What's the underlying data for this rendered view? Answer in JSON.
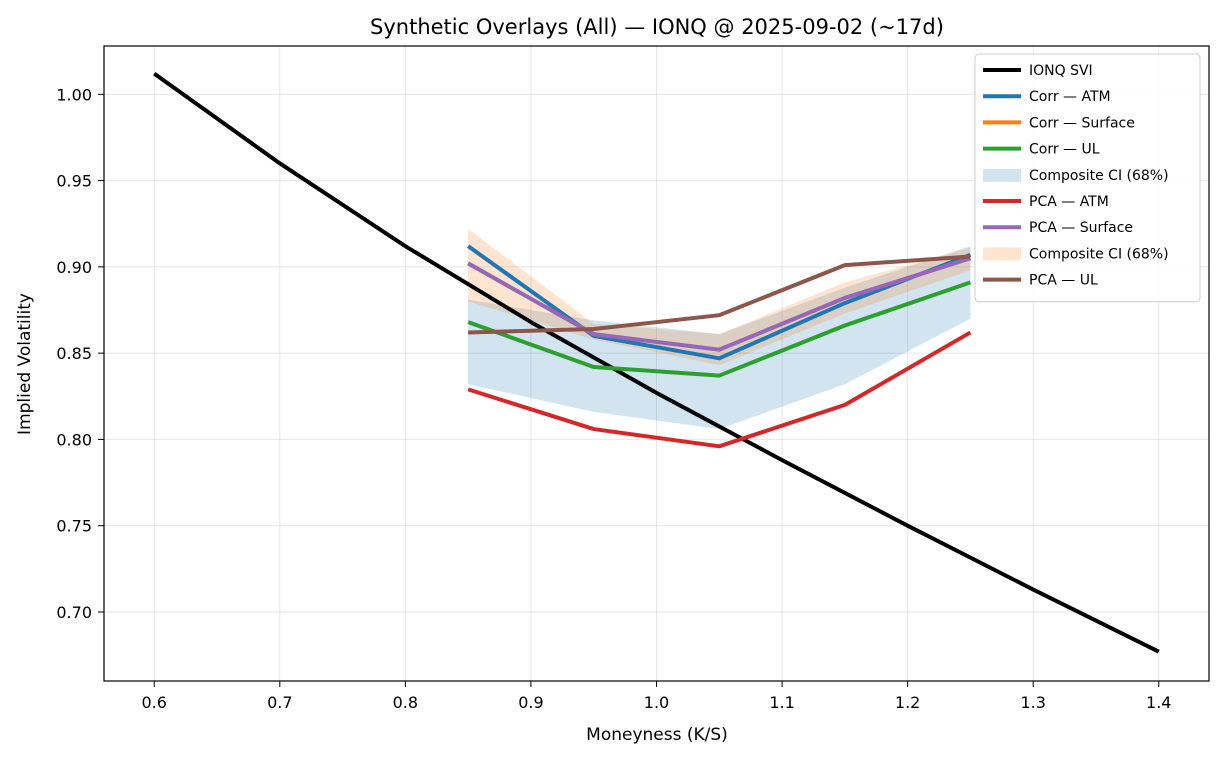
{
  "chart_data": {
    "type": "line",
    "title": "Synthetic Overlays (All) — IONQ @ 2025-09-02 (~17d)",
    "xlabel": "Moneyness (K/S)",
    "ylabel": "Implied Volatility",
    "xlim": [
      0.56,
      1.44
    ],
    "ylim": [
      0.66,
      1.028
    ],
    "xticks": [
      0.6,
      0.7,
      0.8,
      0.9,
      1.0,
      1.1,
      1.2,
      1.3,
      1.4
    ],
    "yticks": [
      0.7,
      0.75,
      0.8,
      0.85,
      0.9,
      0.95,
      1.0
    ],
    "xtick_labels": [
      "0.6",
      "0.7",
      "0.8",
      "0.9",
      "1.0",
      "1.1",
      "1.2",
      "1.3",
      "1.4"
    ],
    "ytick_labels": [
      "0.70",
      "0.75",
      "0.80",
      "0.85",
      "0.90",
      "0.95",
      "1.00"
    ],
    "grid": true,
    "legend_position": "top-right",
    "bands": [
      {
        "name": "Composite CI (68%)",
        "color": "#1f77b4",
        "opacity": 0.2,
        "x": [
          0.85,
          0.95,
          1.05,
          1.15,
          1.25
        ],
        "lower": [
          0.832,
          0.816,
          0.806,
          0.832,
          0.87
        ],
        "upper": [
          0.881,
          0.869,
          0.861,
          0.888,
          0.912
        ]
      },
      {
        "name": "Composite CI (68%)",
        "color": "#ff7f0e",
        "opacity": 0.2,
        "x": [
          0.85,
          0.95,
          1.05,
          1.15,
          1.25
        ],
        "lower": [
          0.88,
          0.858,
          0.843,
          0.873,
          0.898
        ],
        "upper": [
          0.922,
          0.867,
          0.861,
          0.891,
          0.911
        ]
      }
    ],
    "series": [
      {
        "name": "IONQ SVI",
        "color": "#000000",
        "x": [
          0.6,
          0.7,
          0.8,
          0.9,
          1.0,
          1.1,
          1.2,
          1.3,
          1.4
        ],
        "y": [
          1.012,
          0.96,
          0.912,
          0.868,
          0.827,
          0.788,
          0.75,
          0.713,
          0.677
        ]
      },
      {
        "name": "Corr — ATM",
        "color": "#1f77b4",
        "x": [
          0.85,
          0.95,
          1.05,
          1.15,
          1.25
        ],
        "y": [
          0.912,
          0.86,
          0.847,
          0.879,
          0.907
        ]
      },
      {
        "name": "Corr — Surface",
        "color": "#ff7f0e",
        "x": [
          0.85,
          0.95,
          1.05,
          1.15,
          1.25
        ],
        "y": [
          0.902,
          0.861,
          0.852,
          0.882,
          0.905
        ]
      },
      {
        "name": "Corr — UL",
        "color": "#2ca02c",
        "x": [
          0.85,
          0.95,
          1.05,
          1.15,
          1.25
        ],
        "y": [
          0.868,
          0.842,
          0.837,
          0.866,
          0.891
        ]
      },
      {
        "name": "PCA — ATM",
        "color": "#d62728",
        "x": [
          0.85,
          0.95,
          1.05,
          1.15,
          1.25
        ],
        "y": [
          0.829,
          0.806,
          0.796,
          0.82,
          0.862
        ]
      },
      {
        "name": "PCA — Surface",
        "color": "#9467bd",
        "x": [
          0.85,
          0.95,
          1.05,
          1.15,
          1.25
        ],
        "y": [
          0.902,
          0.861,
          0.852,
          0.882,
          0.905
        ]
      },
      {
        "name": "PCA — UL",
        "color": "#8c564b",
        "x": [
          0.85,
          0.95,
          1.05,
          1.15,
          1.25
        ],
        "y": [
          0.862,
          0.864,
          0.872,
          0.901,
          0.906
        ]
      }
    ],
    "legend": [
      {
        "label": "IONQ SVI",
        "kind": "line",
        "color": "#000000"
      },
      {
        "label": "Corr — ATM",
        "kind": "line",
        "color": "#1f77b4"
      },
      {
        "label": "Corr — Surface",
        "kind": "line",
        "color": "#ff7f0e"
      },
      {
        "label": "Corr — UL",
        "kind": "line",
        "color": "#2ca02c"
      },
      {
        "label": "Composite CI (68%)",
        "kind": "patch",
        "color": "#1f77b4"
      },
      {
        "label": "PCA — ATM",
        "kind": "line",
        "color": "#d62728"
      },
      {
        "label": "PCA — Surface",
        "kind": "line",
        "color": "#9467bd"
      },
      {
        "label": "Composite CI (68%)",
        "kind": "patch",
        "color": "#ff7f0e"
      },
      {
        "label": "PCA — UL",
        "kind": "line",
        "color": "#8c564b"
      }
    ]
  }
}
